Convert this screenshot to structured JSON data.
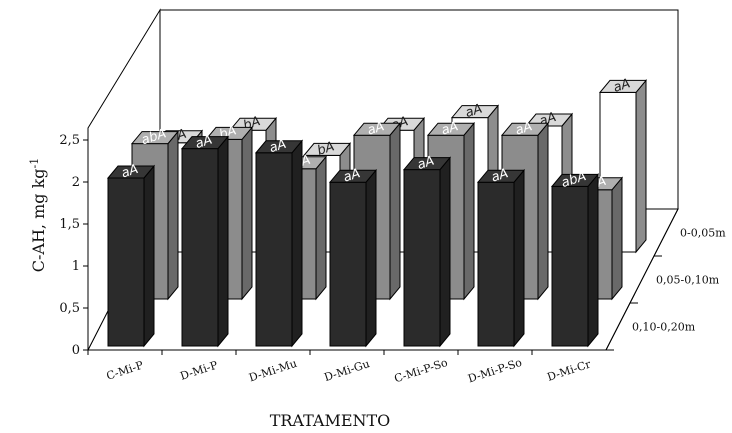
{
  "chart_data": {
    "type": "bar",
    "ylabel_main": "C-AH, mg kg",
    "ylabel_sup": "-1",
    "xlabel": "TRATAMENTO",
    "ylim": [
      0,
      2.5
    ],
    "yticks": [
      "0",
      "0,5",
      "1",
      "1,5",
      "2",
      "2,5"
    ],
    "categories": [
      "C-Mi-P",
      "D-Mi-P",
      "D-Mi-Mu",
      "D-Mi-Gu",
      "C-Mi-P-So",
      "D-Mi-P-So",
      "D-Mi-Cr"
    ],
    "depths": [
      "0-0,05m",
      "0,05-0,10m",
      "0,10-0,20m"
    ],
    "series": [
      {
        "name": "0-0,05m",
        "color": "#2b2b2b",
        "values": [
          2.0,
          2.35,
          2.3,
          1.95,
          2.1,
          1.95,
          1.9
        ],
        "labels": [
          "aA",
          "aA",
          "aA",
          "aA",
          "aA",
          "aA",
          "abA"
        ]
      },
      {
        "name": "0,05-0,10m",
        "color": "#8c8c8c",
        "values": [
          1.85,
          1.9,
          1.55,
          1.95,
          1.95,
          1.95,
          1.3
        ],
        "labels": [
          "abA",
          "bA",
          "bA",
          "aA",
          "aA",
          "aA",
          "aA"
        ]
      },
      {
        "name": "0,10-0,20m",
        "color": "#ffffff",
        "values": [
          1.3,
          1.45,
          1.15,
          1.45,
          1.6,
          1.5,
          1.9
        ],
        "labels": [
          "bA",
          "bA",
          "bA",
          "aA",
          "aA",
          "aA",
          "aA"
        ]
      }
    ],
    "grid": false,
    "legend": "none"
  }
}
